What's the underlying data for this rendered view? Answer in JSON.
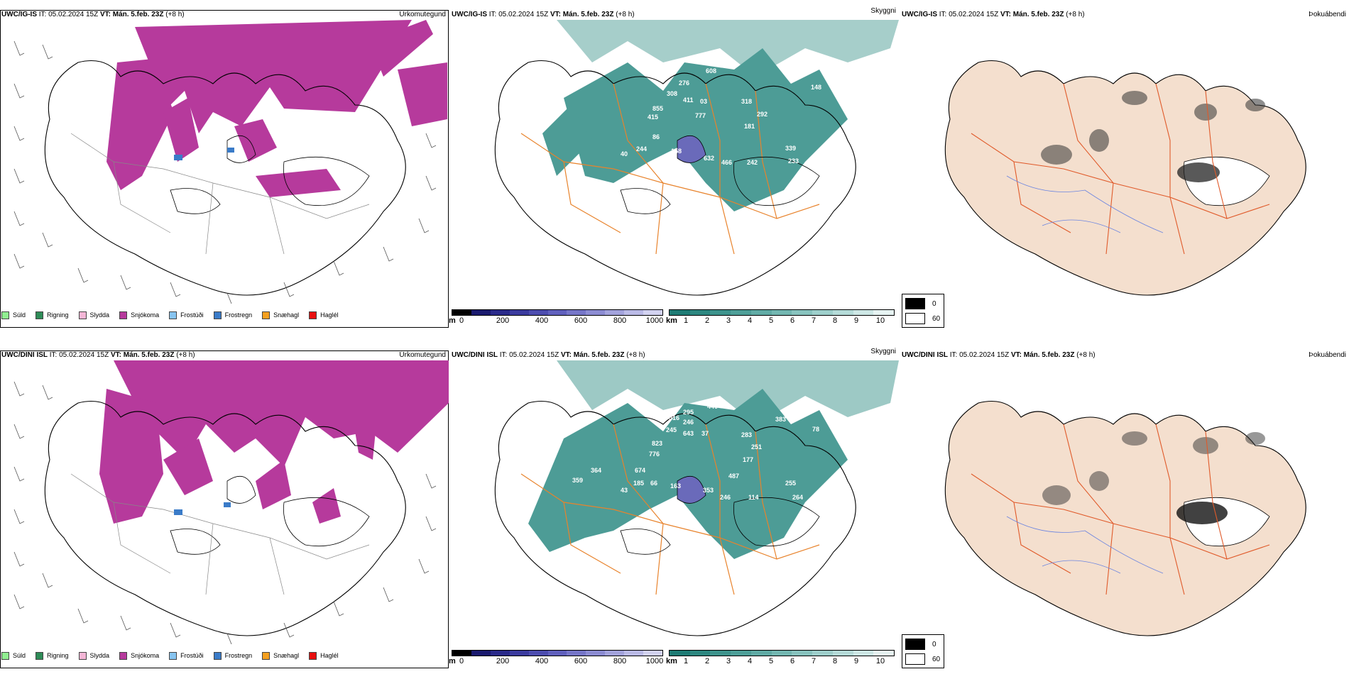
{
  "rows": [
    {
      "model": "UWC/IG-IS",
      "it_label": "IT:",
      "it_value": "05.02.2024 15Z",
      "vt_label": "VT:",
      "vt_value": "Mán. 5.feb. 23Z",
      "lead": "(+8 h)",
      "panels": [
        "Úrkomutegund",
        "Skyggni",
        "Þokuábendi"
      ],
      "labels": [
        "608",
        "276",
        "308",
        "411",
        "03",
        "855",
        "415",
        "777",
        "318",
        "292",
        "148",
        "181",
        "86",
        "244",
        "158",
        "632",
        "466",
        "242",
        "339",
        "233",
        "40"
      ]
    },
    {
      "model": "UWC/DINI ISL",
      "it_label": "IT:",
      "it_value": "05.02.2024 15Z",
      "vt_label": "VT:",
      "vt_value": "Mán. 5.feb. 23Z",
      "lead": "(+8 h)",
      "panels": [
        "Úrkomutegund",
        "Skyggni",
        "Þokuábendi"
      ],
      "labels": [
        "440",
        "295",
        "516",
        "246",
        "245",
        "643",
        "37",
        "383",
        "78",
        "823",
        "776",
        "283",
        "251",
        "177",
        "674",
        "364",
        "359",
        "185",
        "66",
        "163",
        "487",
        "353",
        "246",
        "114",
        "255",
        "264",
        "43"
      ]
    }
  ],
  "precip_legend": [
    {
      "label": "Súld",
      "color": "#90ee90"
    },
    {
      "label": "Rigning",
      "color": "#2e8b57"
    },
    {
      "label": "Slydda",
      "color": "#f4b6d6"
    },
    {
      "label": "Snjókoma",
      "color": "#b63a9c"
    },
    {
      "label": "Frostúði",
      "color": "#87c4f0"
    },
    {
      "label": "Frostregn",
      "color": "#3a7bc8"
    },
    {
      "label": "Snæhagl",
      "color": "#f5a020"
    },
    {
      "label": "Haglél",
      "color": "#e81010"
    }
  ],
  "cloud_base_bar": {
    "unit": "m",
    "ticks": [
      "0",
      "200",
      "400",
      "600",
      "800",
      "1000"
    ],
    "colors": [
      "#000000",
      "#1a1a6e",
      "#2a2a8a",
      "#3b3b9e",
      "#4d4daf",
      "#6060bd",
      "#7676c8",
      "#8c8cd2",
      "#a3a3dc",
      "#babae6",
      "#d2d2f0"
    ]
  },
  "visibility_bar": {
    "unit": "km",
    "ticks": [
      "1",
      "2",
      "3",
      "4",
      "5",
      "6",
      "7",
      "8",
      "9",
      "10"
    ],
    "colors": [
      "#1e7b74",
      "#2d8780",
      "#3d938c",
      "#4e9f98",
      "#60aba5",
      "#73b7b1",
      "#88c3be",
      "#9ecfcb",
      "#b5dbd8",
      "#cde7e5",
      "#e6f3f2"
    ]
  },
  "fog_box": {
    "top": "0",
    "bottom": "60"
  }
}
